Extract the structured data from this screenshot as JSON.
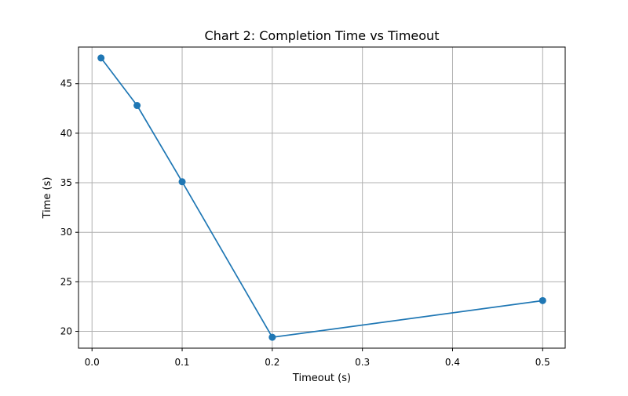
{
  "chart_data": {
    "type": "line",
    "title": "Chart 2: Completion Time vs Timeout",
    "xlabel": "Timeout (s)",
    "ylabel": "Time (s)",
    "x": [
      0.01,
      0.05,
      0.1,
      0.2,
      0.5
    ],
    "series": [
      {
        "values": [
          47.6,
          42.8,
          35.1,
          19.4,
          23.1
        ],
        "color": "#1f77b4"
      }
    ],
    "xlim": [
      -0.015,
      0.525
    ],
    "ylim": [
      18.3,
      48.7
    ],
    "xticks": [
      0.0,
      0.1,
      0.2,
      0.3,
      0.4,
      0.5
    ],
    "xtick_labels": [
      "0.0",
      "0.1",
      "0.2",
      "0.3",
      "0.4",
      "0.5"
    ],
    "yticks": [
      20,
      25,
      30,
      35,
      40,
      45
    ],
    "ytick_labels": [
      "20",
      "25",
      "30",
      "35",
      "40",
      "45"
    ],
    "grid": true,
    "marker": "circle"
  }
}
